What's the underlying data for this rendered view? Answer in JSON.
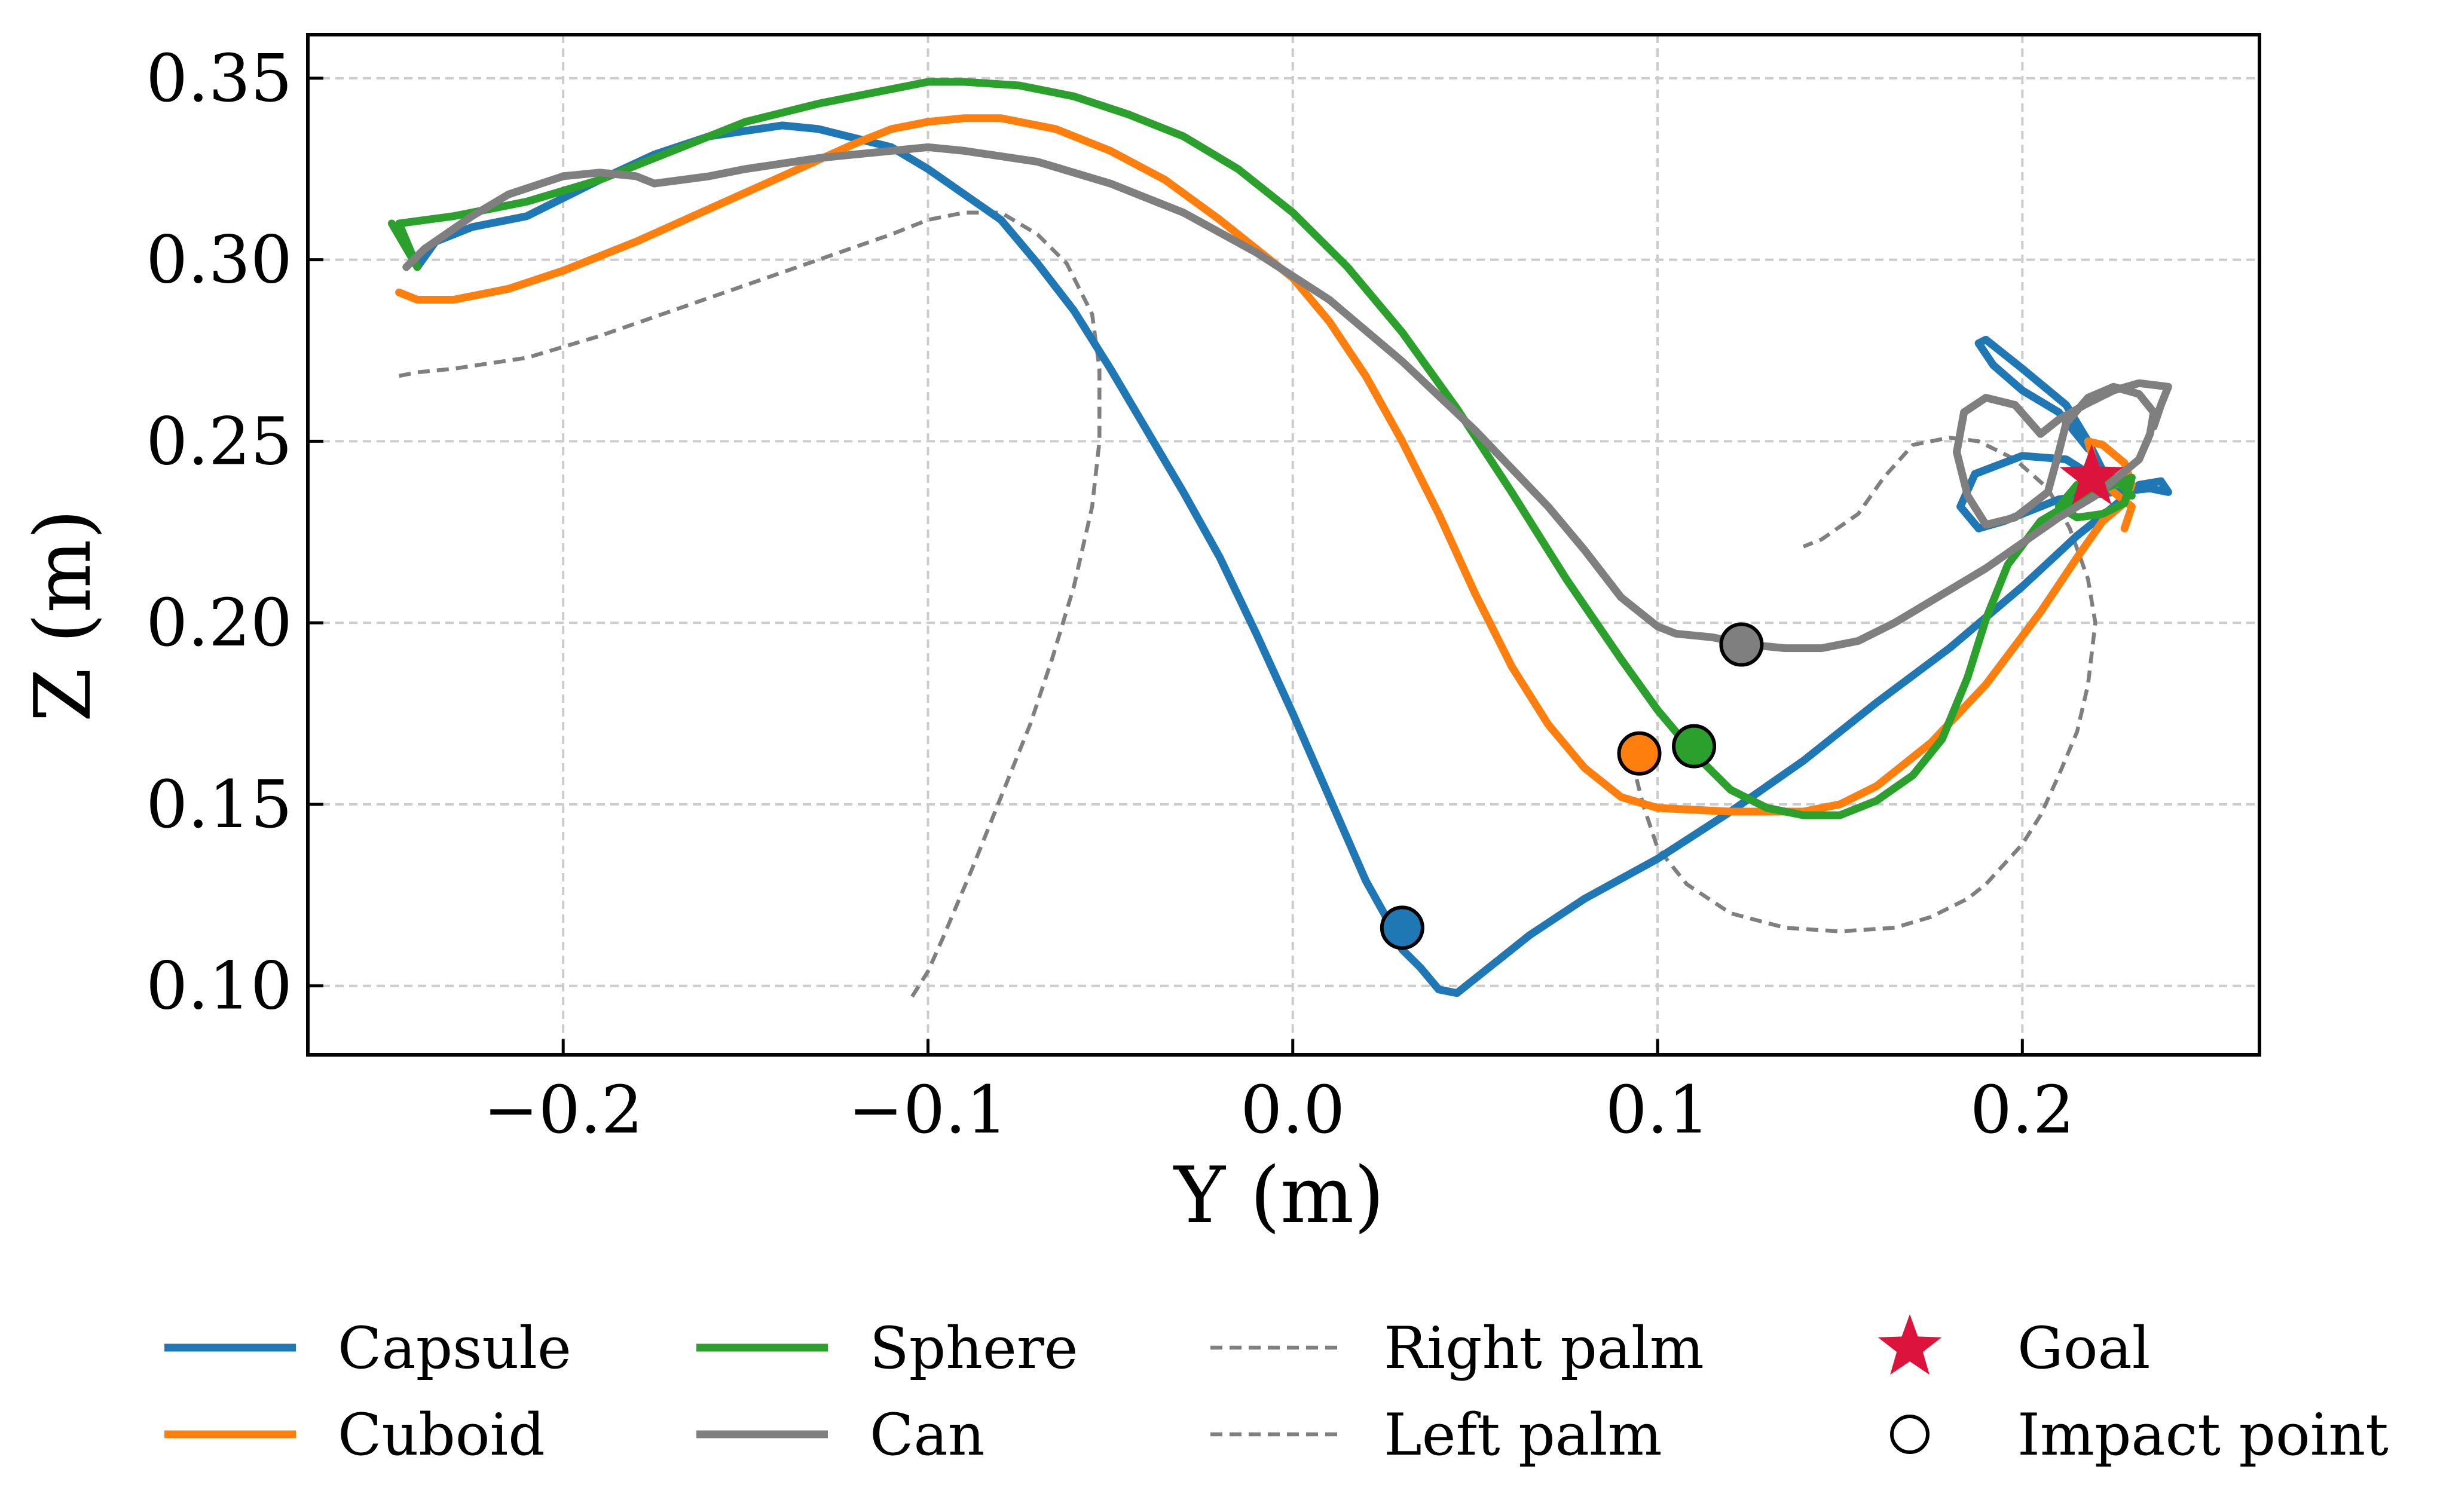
{
  "chart_data": {
    "type": "line",
    "title": "",
    "xlabel": "Y (m)",
    "ylabel": "Z (m)",
    "xlim": [
      -0.27,
      0.265
    ],
    "ylim": [
      0.081,
      0.362
    ],
    "xticks": [
      -0.2,
      -0.1,
      0.0,
      0.1,
      0.2
    ],
    "xtick_labels": [
      "−0.2",
      "−0.1",
      "0.0",
      "0.1",
      "0.2"
    ],
    "yticks": [
      0.1,
      0.15,
      0.2,
      0.25,
      0.3,
      0.35
    ],
    "ytick_labels": [
      "0.10",
      "0.15",
      "0.20",
      "0.25",
      "0.30",
      "0.35"
    ],
    "grid": true,
    "legend_position": "bottom",
    "series": [
      {
        "name": "Capsule",
        "style": "solid",
        "color": "#1f77b4",
        "points": [
          [
            -0.24,
            0.298
          ],
          [
            -0.235,
            0.305
          ],
          [
            -0.225,
            0.309
          ],
          [
            -0.21,
            0.312
          ],
          [
            -0.19,
            0.322
          ],
          [
            -0.175,
            0.329
          ],
          [
            -0.16,
            0.334
          ],
          [
            -0.14,
            0.337
          ],
          [
            -0.13,
            0.336
          ],
          [
            -0.11,
            0.331
          ],
          [
            -0.1,
            0.325
          ],
          [
            -0.08,
            0.311
          ],
          [
            -0.07,
            0.299
          ],
          [
            -0.06,
            0.286
          ],
          [
            -0.05,
            0.27
          ],
          [
            -0.04,
            0.253
          ],
          [
            -0.03,
            0.236
          ],
          [
            -0.02,
            0.218
          ],
          [
            -0.01,
            0.197
          ],
          [
            0.0,
            0.175
          ],
          [
            0.01,
            0.152
          ],
          [
            0.02,
            0.129
          ],
          [
            0.025,
            0.12
          ],
          [
            0.03,
            0.11
          ],
          [
            0.035,
            0.105
          ],
          [
            0.04,
            0.099
          ],
          [
            0.045,
            0.098
          ],
          [
            0.055,
            0.106
          ],
          [
            0.065,
            0.114
          ],
          [
            0.08,
            0.124
          ],
          [
            0.1,
            0.135
          ],
          [
            0.12,
            0.148
          ],
          [
            0.14,
            0.162
          ],
          [
            0.16,
            0.178
          ],
          [
            0.18,
            0.193
          ],
          [
            0.2,
            0.21
          ],
          [
            0.215,
            0.224
          ],
          [
            0.225,
            0.232
          ],
          [
            0.232,
            0.238
          ],
          [
            0.238,
            0.239
          ],
          [
            0.24,
            0.236
          ],
          [
            0.235,
            0.237
          ],
          [
            0.225,
            0.236
          ],
          [
            0.21,
            0.234
          ],
          [
            0.195,
            0.228
          ],
          [
            0.188,
            0.226
          ],
          [
            0.183,
            0.232
          ],
          [
            0.187,
            0.241
          ],
          [
            0.2,
            0.246
          ],
          [
            0.212,
            0.245
          ],
          [
            0.22,
            0.24
          ],
          [
            0.225,
            0.236
          ],
          [
            0.218,
            0.25
          ],
          [
            0.212,
            0.26
          ],
          [
            0.2,
            0.27
          ],
          [
            0.19,
            0.278
          ],
          [
            0.188,
            0.277
          ],
          [
            0.192,
            0.271
          ],
          [
            0.2,
            0.264
          ],
          [
            0.21,
            0.258
          ],
          [
            0.218,
            0.248
          ]
        ]
      },
      {
        "name": "Cuboid",
        "style": "solid",
        "color": "#ff7f0e",
        "points": [
          [
            -0.245,
            0.291
          ],
          [
            -0.24,
            0.289
          ],
          [
            -0.23,
            0.289
          ],
          [
            -0.215,
            0.292
          ],
          [
            -0.2,
            0.297
          ],
          [
            -0.18,
            0.305
          ],
          [
            -0.16,
            0.314
          ],
          [
            -0.14,
            0.323
          ],
          [
            -0.12,
            0.332
          ],
          [
            -0.11,
            0.336
          ],
          [
            -0.1,
            0.338
          ],
          [
            -0.09,
            0.339
          ],
          [
            -0.08,
            0.339
          ],
          [
            -0.065,
            0.336
          ],
          [
            -0.05,
            0.33
          ],
          [
            -0.035,
            0.322
          ],
          [
            -0.02,
            0.311
          ],
          [
            0.0,
            0.295
          ],
          [
            0.01,
            0.283
          ],
          [
            0.02,
            0.268
          ],
          [
            0.03,
            0.25
          ],
          [
            0.04,
            0.23
          ],
          [
            0.05,
            0.208
          ],
          [
            0.06,
            0.188
          ],
          [
            0.07,
            0.172
          ],
          [
            0.08,
            0.16
          ],
          [
            0.09,
            0.152
          ],
          [
            0.1,
            0.149
          ],
          [
            0.12,
            0.148
          ],
          [
            0.14,
            0.148
          ],
          [
            0.15,
            0.15
          ],
          [
            0.16,
            0.155
          ],
          [
            0.175,
            0.167
          ],
          [
            0.19,
            0.183
          ],
          [
            0.205,
            0.203
          ],
          [
            0.215,
            0.218
          ],
          [
            0.222,
            0.228
          ],
          [
            0.228,
            0.233
          ],
          [
            0.23,
            0.238
          ],
          [
            0.228,
            0.244
          ],
          [
            0.222,
            0.249
          ],
          [
            0.218,
            0.25
          ],
          [
            0.22,
            0.243
          ],
          [
            0.225,
            0.236
          ],
          [
            0.23,
            0.232
          ],
          [
            0.228,
            0.226
          ]
        ]
      },
      {
        "name": "Sphere",
        "style": "solid",
        "color": "#2ca02c",
        "points": [
          [
            -0.247,
            0.31
          ],
          [
            -0.24,
            0.298
          ],
          [
            -0.245,
            0.31
          ],
          [
            -0.23,
            0.312
          ],
          [
            -0.21,
            0.316
          ],
          [
            -0.19,
            0.322
          ],
          [
            -0.17,
            0.33
          ],
          [
            -0.15,
            0.338
          ],
          [
            -0.13,
            0.343
          ],
          [
            -0.11,
            0.347
          ],
          [
            -0.1,
            0.349
          ],
          [
            -0.09,
            0.349
          ],
          [
            -0.075,
            0.348
          ],
          [
            -0.06,
            0.345
          ],
          [
            -0.045,
            0.34
          ],
          [
            -0.03,
            0.334
          ],
          [
            -0.015,
            0.325
          ],
          [
            0.0,
            0.313
          ],
          [
            0.015,
            0.298
          ],
          [
            0.03,
            0.28
          ],
          [
            0.045,
            0.259
          ],
          [
            0.06,
            0.236
          ],
          [
            0.075,
            0.212
          ],
          [
            0.09,
            0.19
          ],
          [
            0.1,
            0.176
          ],
          [
            0.11,
            0.164
          ],
          [
            0.12,
            0.154
          ],
          [
            0.13,
            0.149
          ],
          [
            0.14,
            0.147
          ],
          [
            0.15,
            0.147
          ],
          [
            0.16,
            0.151
          ],
          [
            0.17,
            0.158
          ],
          [
            0.178,
            0.168
          ],
          [
            0.185,
            0.185
          ],
          [
            0.19,
            0.201
          ],
          [
            0.196,
            0.216
          ],
          [
            0.205,
            0.228
          ],
          [
            0.215,
            0.234
          ],
          [
            0.225,
            0.238
          ],
          [
            0.23,
            0.24
          ],
          [
            0.228,
            0.233
          ],
          [
            0.222,
            0.23
          ],
          [
            0.215,
            0.229
          ],
          [
            0.21,
            0.232
          ],
          [
            0.215,
            0.238
          ],
          [
            0.225,
            0.24
          ],
          [
            0.23,
            0.235
          ]
        ]
      },
      {
        "name": "Can",
        "style": "solid",
        "color": "#7f7f7f",
        "points": [
          [
            -0.243,
            0.298
          ],
          [
            -0.238,
            0.303
          ],
          [
            -0.225,
            0.312
          ],
          [
            -0.215,
            0.318
          ],
          [
            -0.2,
            0.323
          ],
          [
            -0.19,
            0.324
          ],
          [
            -0.18,
            0.323
          ],
          [
            -0.175,
            0.321
          ],
          [
            -0.16,
            0.323
          ],
          [
            -0.15,
            0.325
          ],
          [
            -0.13,
            0.328
          ],
          [
            -0.11,
            0.33
          ],
          [
            -0.1,
            0.331
          ],
          [
            -0.09,
            0.33
          ],
          [
            -0.07,
            0.327
          ],
          [
            -0.05,
            0.321
          ],
          [
            -0.03,
            0.313
          ],
          [
            -0.01,
            0.302
          ],
          [
            0.01,
            0.289
          ],
          [
            0.03,
            0.272
          ],
          [
            0.05,
            0.253
          ],
          [
            0.07,
            0.232
          ],
          [
            0.08,
            0.22
          ],
          [
            0.09,
            0.207
          ],
          [
            0.1,
            0.199
          ],
          [
            0.105,
            0.197
          ],
          [
            0.115,
            0.196
          ],
          [
            0.125,
            0.194
          ],
          [
            0.135,
            0.193
          ],
          [
            0.145,
            0.193
          ],
          [
            0.155,
            0.195
          ],
          [
            0.165,
            0.2
          ],
          [
            0.175,
            0.206
          ],
          [
            0.19,
            0.215
          ],
          [
            0.2,
            0.222
          ],
          [
            0.21,
            0.229
          ],
          [
            0.22,
            0.235
          ],
          [
            0.226,
            0.24
          ],
          [
            0.232,
            0.245
          ],
          [
            0.235,
            0.252
          ],
          [
            0.236,
            0.258
          ],
          [
            0.232,
            0.263
          ],
          [
            0.225,
            0.265
          ],
          [
            0.218,
            0.262
          ],
          [
            0.212,
            0.255
          ],
          [
            0.21,
            0.247
          ],
          [
            0.207,
            0.236
          ],
          [
            0.198,
            0.229
          ],
          [
            0.19,
            0.227
          ],
          [
            0.185,
            0.235
          ],
          [
            0.182,
            0.247
          ],
          [
            0.184,
            0.258
          ],
          [
            0.19,
            0.262
          ],
          [
            0.198,
            0.26
          ],
          [
            0.205,
            0.252
          ],
          [
            0.21,
            0.256
          ],
          [
            0.217,
            0.26
          ],
          [
            0.225,
            0.264
          ],
          [
            0.232,
            0.266
          ],
          [
            0.24,
            0.265
          ],
          [
            0.238,
            0.26
          ],
          [
            0.236,
            0.254
          ]
        ]
      },
      {
        "name": "Right palm",
        "style": "dashed",
        "color": "#7f7f7f",
        "points": [
          [
            -0.245,
            0.268
          ],
          [
            -0.24,
            0.269
          ],
          [
            -0.23,
            0.27
          ],
          [
            -0.21,
            0.273
          ],
          [
            -0.19,
            0.279
          ],
          [
            -0.17,
            0.286
          ],
          [
            -0.15,
            0.293
          ],
          [
            -0.13,
            0.3
          ],
          [
            -0.11,
            0.307
          ],
          [
            -0.1,
            0.311
          ],
          [
            -0.09,
            0.313
          ],
          [
            -0.08,
            0.313
          ],
          [
            -0.07,
            0.307
          ],
          [
            -0.062,
            0.299
          ],
          [
            -0.055,
            0.285
          ],
          [
            -0.053,
            0.27
          ],
          [
            -0.053,
            0.25
          ],
          [
            -0.055,
            0.232
          ],
          [
            -0.06,
            0.21
          ],
          [
            -0.066,
            0.19
          ],
          [
            -0.072,
            0.172
          ],
          [
            -0.08,
            0.152
          ],
          [
            -0.088,
            0.132
          ],
          [
            -0.096,
            0.113
          ],
          [
            -0.1,
            0.104
          ],
          [
            -0.105,
            0.096
          ]
        ]
      },
      {
        "name": "Left palm",
        "style": "dashed",
        "color": "#7f7f7f",
        "points": [
          [
            0.093,
            0.162
          ],
          [
            0.096,
            0.15
          ],
          [
            0.1,
            0.138
          ],
          [
            0.108,
            0.128
          ],
          [
            0.12,
            0.12
          ],
          [
            0.135,
            0.116
          ],
          [
            0.15,
            0.115
          ],
          [
            0.165,
            0.116
          ],
          [
            0.175,
            0.119
          ],
          [
            0.185,
            0.124
          ],
          [
            0.19,
            0.128
          ],
          [
            0.2,
            0.139
          ],
          [
            0.205,
            0.147
          ],
          [
            0.21,
            0.158
          ],
          [
            0.215,
            0.17
          ],
          [
            0.218,
            0.183
          ],
          [
            0.22,
            0.2
          ],
          [
            0.218,
            0.212
          ],
          [
            0.213,
            0.226
          ],
          [
            0.207,
            0.237
          ],
          [
            0.198,
            0.245
          ],
          [
            0.188,
            0.25
          ],
          [
            0.18,
            0.251
          ],
          [
            0.17,
            0.249
          ],
          [
            0.162,
            0.24
          ],
          [
            0.155,
            0.23
          ],
          [
            0.145,
            0.223
          ],
          [
            0.14,
            0.221
          ]
        ]
      }
    ],
    "markers": {
      "goal": {
        "name": "Goal",
        "x": 0.219,
        "y": 0.24,
        "color": "#dc143c"
      },
      "impact_points": {
        "name": "Impact point",
        "points": [
          {
            "series": "Capsule",
            "x": 0.03,
            "y": 0.116,
            "color": "#1f77b4"
          },
          {
            "series": "Cuboid",
            "x": 0.095,
            "y": 0.164,
            "color": "#ff7f0e"
          },
          {
            "series": "Sphere",
            "x": 0.11,
            "y": 0.166,
            "color": "#2ca02c"
          },
          {
            "series": "Can",
            "x": 0.123,
            "y": 0.194,
            "color": "#7f7f7f"
          }
        ]
      }
    },
    "legend": [
      {
        "label": "Capsule",
        "kind": "line",
        "color": "#1f77b4"
      },
      {
        "label": "Cuboid",
        "kind": "line",
        "color": "#ff7f0e"
      },
      {
        "label": "Sphere",
        "kind": "line",
        "color": "#2ca02c"
      },
      {
        "label": "Can",
        "kind": "line",
        "color": "#7f7f7f"
      },
      {
        "label": "Right palm",
        "kind": "dashed",
        "color": "#7f7f7f"
      },
      {
        "label": "Left palm",
        "kind": "dashed",
        "color": "#7f7f7f"
      },
      {
        "label": "Goal",
        "kind": "star",
        "color": "#dc143c"
      },
      {
        "label": "Impact point",
        "kind": "circle",
        "color": "#ffffff"
      }
    ]
  }
}
